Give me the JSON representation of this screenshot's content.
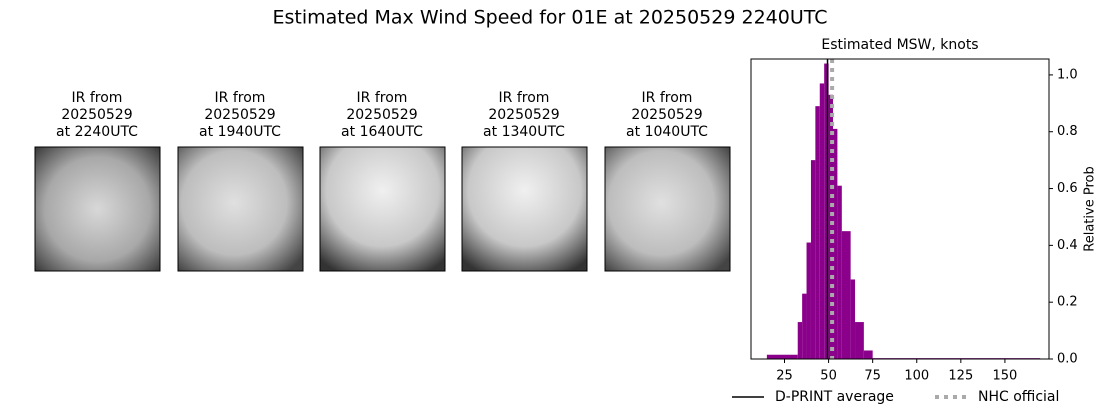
{
  "title": "Estimated Max Wind Speed for 01E at 20250529 2240UTC",
  "panels": [
    {
      "lines": [
        "IR from",
        "20250529",
        "at 2240UTC"
      ]
    },
    {
      "lines": [
        "IR from",
        "20250529",
        "at 1940UTC"
      ]
    },
    {
      "lines": [
        "IR from",
        "20250529",
        "at 1640UTC"
      ]
    },
    {
      "lines": [
        "IR from",
        "20250529",
        "at 1340UTC"
      ]
    },
    {
      "lines": [
        "IR from",
        "20250529",
        "at 1040UTC"
      ]
    }
  ],
  "chart_data": {
    "type": "histogram",
    "title": "Estimated MSW, knots",
    "y_label": "Relative Prob",
    "color": "#8b008b",
    "bins": [
      15,
      32.5,
      35,
      37.5,
      40,
      42.5,
      45,
      47.5,
      50,
      52.5,
      55,
      57.5,
      62.5,
      65,
      70,
      75,
      170
    ],
    "counts": [
      0.015,
      0.13,
      0.23,
      0.41,
      0.7,
      0.89,
      0.97,
      1.04,
      0.93,
      0.81,
      0.61,
      0.45,
      0.28,
      0.13,
      0.03,
      0.003
    ],
    "xlim": [
      6,
      175
    ],
    "xticks": [
      25,
      50,
      75,
      100,
      125,
      150
    ],
    "ylim": [
      0,
      1.056
    ],
    "yticks": [
      {
        "value": 0,
        "label": "0.0"
      },
      {
        "value": 0.2,
        "label": "0.2"
      },
      {
        "value": 0.4,
        "label": "0.4"
      },
      {
        "value": 0.6,
        "label": "0.6"
      },
      {
        "value": 0.8,
        "label": "0.8"
      },
      {
        "value": 1,
        "label": "1.0"
      }
    ],
    "reference_lines": [
      {
        "name": "D-PRINT average",
        "value": 49.4,
        "color": "#000000",
        "style": "solid"
      },
      {
        "name": "NHC official",
        "value": 52,
        "color": "#aaaaaa",
        "style": "dotted"
      }
    ]
  }
}
